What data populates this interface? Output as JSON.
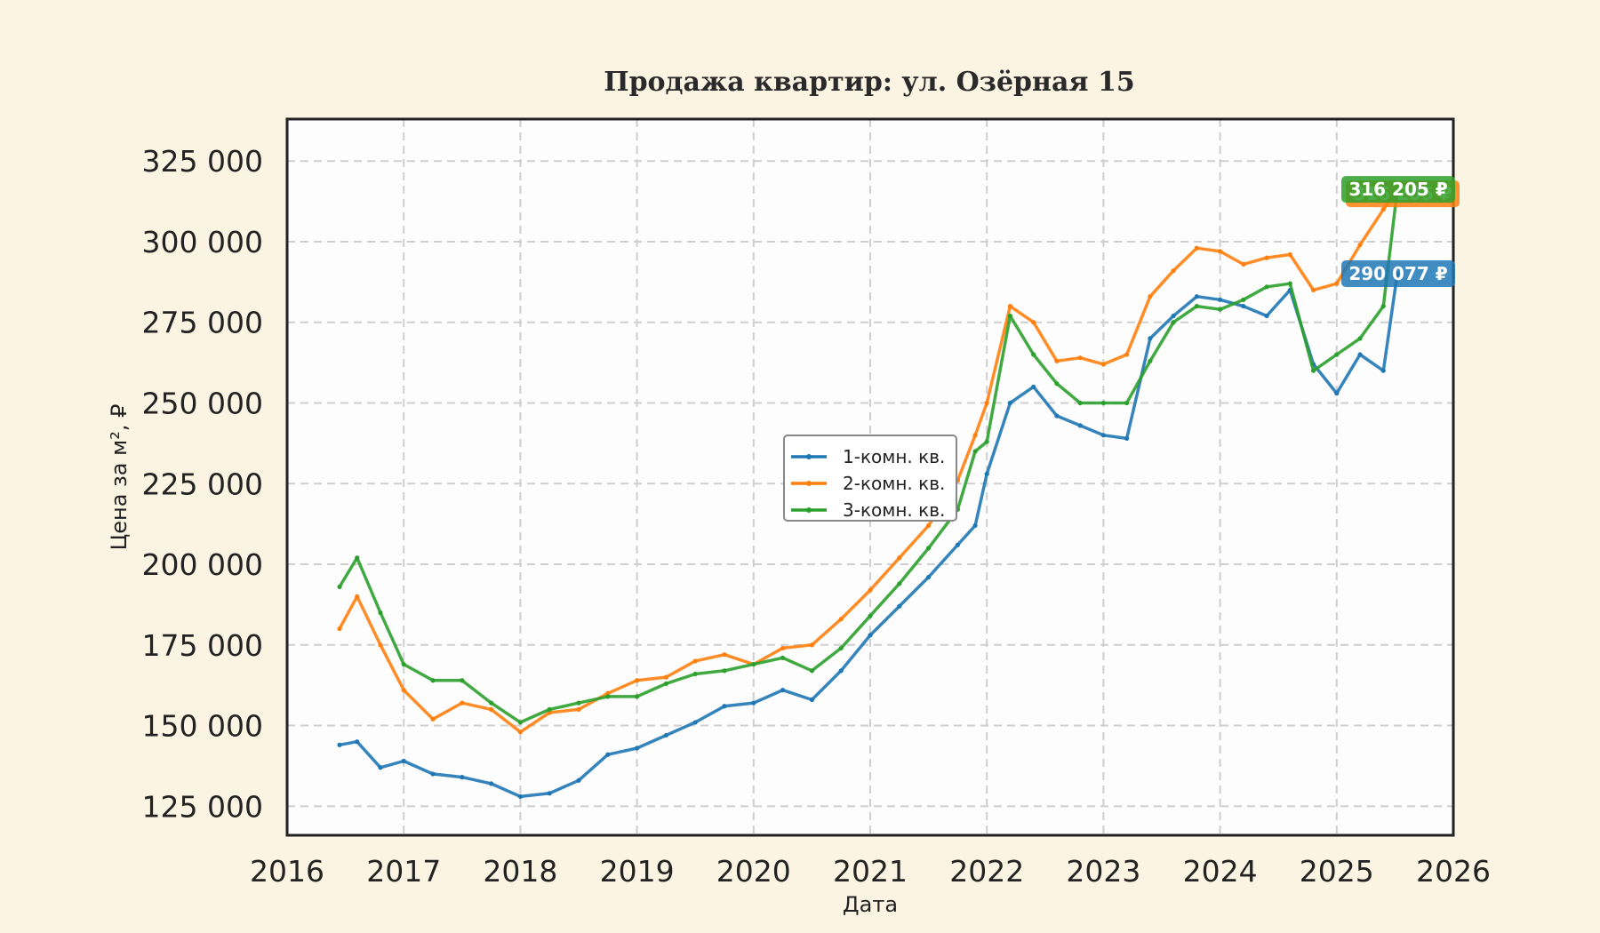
{
  "chart_data": {
    "type": "line",
    "title": "Продажа квартир: ул. Озёрная 15",
    "xlabel": "Дата",
    "ylabel": "Цена за м², ₽",
    "xlim": [
      2016,
      2026
    ],
    "ylim": [
      116000,
      338000
    ],
    "x_ticks": [
      2016,
      2017,
      2018,
      2019,
      2020,
      2021,
      2022,
      2023,
      2024,
      2025,
      2026
    ],
    "x_tick_labels": [
      "2016",
      "2017",
      "2018",
      "2019",
      "2020",
      "2021",
      "2022",
      "2023",
      "2024",
      "2025",
      "2026"
    ],
    "y_ticks": [
      125000,
      150000,
      175000,
      200000,
      225000,
      250000,
      275000,
      300000,
      325000
    ],
    "y_tick_labels": [
      "125 000",
      "150 000",
      "175 000",
      "200 000",
      "225 000",
      "250 000",
      "275 000",
      "300 000",
      "325 000"
    ],
    "grid": true,
    "legend_position": "center",
    "x": [
      2016.45,
      2016.6,
      2016.8,
      2017.0,
      2017.25,
      2017.5,
      2017.75,
      2018.0,
      2018.25,
      2018.5,
      2018.75,
      2019.0,
      2019.25,
      2019.5,
      2019.75,
      2020.0,
      2020.25,
      2020.5,
      2020.75,
      2021.0,
      2021.25,
      2021.5,
      2021.75,
      2021.9,
      2022.0,
      2022.2,
      2022.4,
      2022.6,
      2022.8,
      2023.0,
      2023.2,
      2023.4,
      2023.6,
      2023.8,
      2024.0,
      2024.2,
      2024.4,
      2024.6,
      2024.8,
      2025.0,
      2025.2,
      2025.4,
      2025.52
    ],
    "series": [
      {
        "name": "1-комн. кв.",
        "color": "#1f77b4",
        "values": [
          144000,
          145000,
          137000,
          139000,
          135000,
          134000,
          132000,
          128000,
          129000,
          133000,
          141000,
          143000,
          147000,
          151000,
          156000,
          157000,
          161000,
          158000,
          167000,
          178000,
          187000,
          196000,
          206000,
          212000,
          228000,
          250000,
          255000,
          246000,
          243000,
          240000,
          239000,
          270000,
          277000,
          283000,
          282000,
          280000,
          277000,
          285000,
          262000,
          253000,
          265000,
          260000,
          290077
        ]
      },
      {
        "name": "2-комн. кв.",
        "color": "#ff7f0e",
        "values": [
          180000,
          190000,
          175000,
          161000,
          152000,
          157000,
          155000,
          148000,
          154000,
          155000,
          160000,
          164000,
          165000,
          170000,
          172000,
          169000,
          174000,
          175000,
          183000,
          192000,
          202000,
          212000,
          226000,
          240000,
          250000,
          280000,
          275000,
          263000,
          264000,
          262000,
          265000,
          283000,
          291000,
          298000,
          297000,
          293000,
          295000,
          296000,
          285000,
          287000,
          299000,
          310000,
          316205
        ]
      },
      {
        "name": "3-комн. кв.",
        "color": "#2ca02c",
        "values": [
          193000,
          202000,
          185000,
          169000,
          164000,
          164000,
          157000,
          151000,
          155000,
          157000,
          159000,
          159000,
          163000,
          166000,
          167000,
          169000,
          171000,
          167000,
          174000,
          184000,
          194000,
          205000,
          217000,
          235000,
          238000,
          277000,
          265000,
          256000,
          250000,
          250000,
          250000,
          263000,
          275000,
          280000,
          279000,
          282000,
          286000,
          287000,
          260000,
          265000,
          270000,
          280000,
          316205
        ]
      }
    ],
    "end_labels": [
      {
        "series": "2-комн. кв.",
        "text": "316 205 ₽",
        "value": 316205,
        "color": "#ff7f0e"
      },
      {
        "series": "3-комн. кв.",
        "text": "316 205 ₽",
        "value": 316205,
        "color": "#2ca02c"
      },
      {
        "series": "1-комн. кв.",
        "text": "290 077 ₽",
        "value": 290077,
        "color": "#1f77b4"
      }
    ]
  }
}
